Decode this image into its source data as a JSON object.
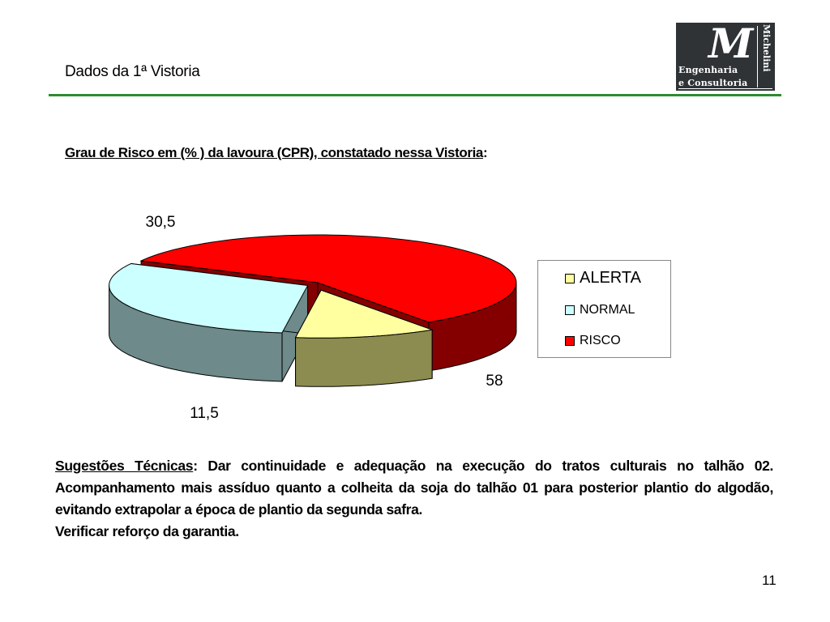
{
  "header": {
    "title": "Dados da 1ª Vistoria",
    "logo": {
      "letter": "M",
      "line1": "Engenharia",
      "line2": "e Consultoria",
      "side": "Michelini"
    }
  },
  "chart_title": {
    "underlined": "Grau de Risco em (% ) da lavoura (CPR), constatado nessa Vistoria",
    "suffix": ":"
  },
  "chart_data": {
    "type": "pie",
    "style": "3d-exploded",
    "categories": [
      "ALERTA",
      "NORMAL",
      "RISCO"
    ],
    "values": [
      11.5,
      30.5,
      58
    ],
    "data_labels": [
      "11,5",
      "30,5",
      "58"
    ],
    "colors": {
      "ALERTA": {
        "top": "#ffffa0",
        "side": "#8c8c50"
      },
      "NORMAL": {
        "top": "#ccffff",
        "side": "#6e8a8a"
      },
      "RISCO": {
        "top": "#ff0000",
        "side": "#840000"
      }
    },
    "legend_position": "right",
    "legend": [
      {
        "label": "ALERTA",
        "color": "#ffffa0"
      },
      {
        "label": "NORMAL",
        "color": "#ccffff"
      },
      {
        "label": "RISCO",
        "color": "#ff0000"
      }
    ]
  },
  "suggestions": {
    "heading": "Sugestões Técnicas",
    "colon": ":",
    "text1": " Dar continuidade e adequação na execução do tratos culturais no talhão 02. Acompanhamento mais assíduo quanto a colheita da soja do talhão 01 para posterior plantio do algodão, evitando extrapolar a época de plantio da segunda safra.",
    "text2": "Verificar reforço da garantia."
  },
  "page_number": "11"
}
